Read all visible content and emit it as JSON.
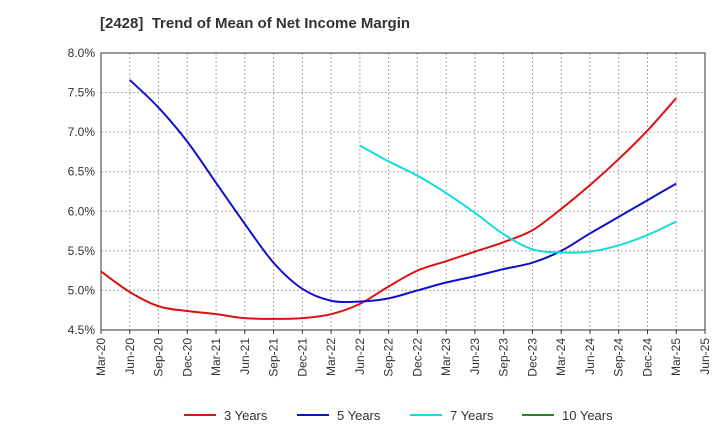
{
  "chart_data": {
    "type": "line",
    "title": "[2428]  Trend of Mean of Net Income Margin",
    "xlabel": "",
    "ylabel": "",
    "x": [
      "Mar-20",
      "Jun-20",
      "Sep-20",
      "Dec-20",
      "Mar-21",
      "Jun-21",
      "Sep-21",
      "Dec-21",
      "Mar-22",
      "Jun-22",
      "Sep-22",
      "Dec-22",
      "Mar-23",
      "Jun-23",
      "Sep-23",
      "Dec-23",
      "Mar-24",
      "Jun-24",
      "Sep-24",
      "Dec-24",
      "Mar-25",
      "Jun-25"
    ],
    "ylim": [
      4.5,
      8.0
    ],
    "yticks": [
      "4.5%",
      "5.0%",
      "5.5%",
      "6.0%",
      "6.5%",
      "7.0%",
      "7.5%",
      "8.0%"
    ],
    "grid": true,
    "legend_position": "bottom",
    "series": [
      {
        "name": "3 Years",
        "color": "#dd1111",
        "values": [
          5.24,
          4.98,
          4.8,
          4.74,
          4.7,
          4.65,
          4.64,
          4.65,
          4.7,
          4.83,
          5.05,
          5.25,
          5.37,
          5.49,
          5.61,
          5.76,
          6.03,
          6.33,
          6.66,
          7.02,
          7.43,
          null
        ]
      },
      {
        "name": "5 Years",
        "color": "#1111cc",
        "values": [
          null,
          7.66,
          7.31,
          6.88,
          6.36,
          5.84,
          5.35,
          5.02,
          4.87,
          4.86,
          4.9,
          5.0,
          5.1,
          5.18,
          5.27,
          5.35,
          5.5,
          5.72,
          5.93,
          6.14,
          6.35,
          null
        ]
      },
      {
        "name": "7 Years",
        "color": "#11dddd",
        "values": [
          null,
          null,
          null,
          null,
          null,
          null,
          null,
          null,
          null,
          6.83,
          6.63,
          6.45,
          6.23,
          5.98,
          5.71,
          5.52,
          5.48,
          5.49,
          5.57,
          5.7,
          5.87,
          null
        ]
      },
      {
        "name": "10 Years",
        "color": "#228822",
        "values": [
          null,
          null,
          null,
          null,
          null,
          null,
          null,
          null,
          null,
          null,
          null,
          null,
          null,
          null,
          null,
          null,
          null,
          null,
          null,
          null,
          null,
          null
        ]
      }
    ]
  }
}
